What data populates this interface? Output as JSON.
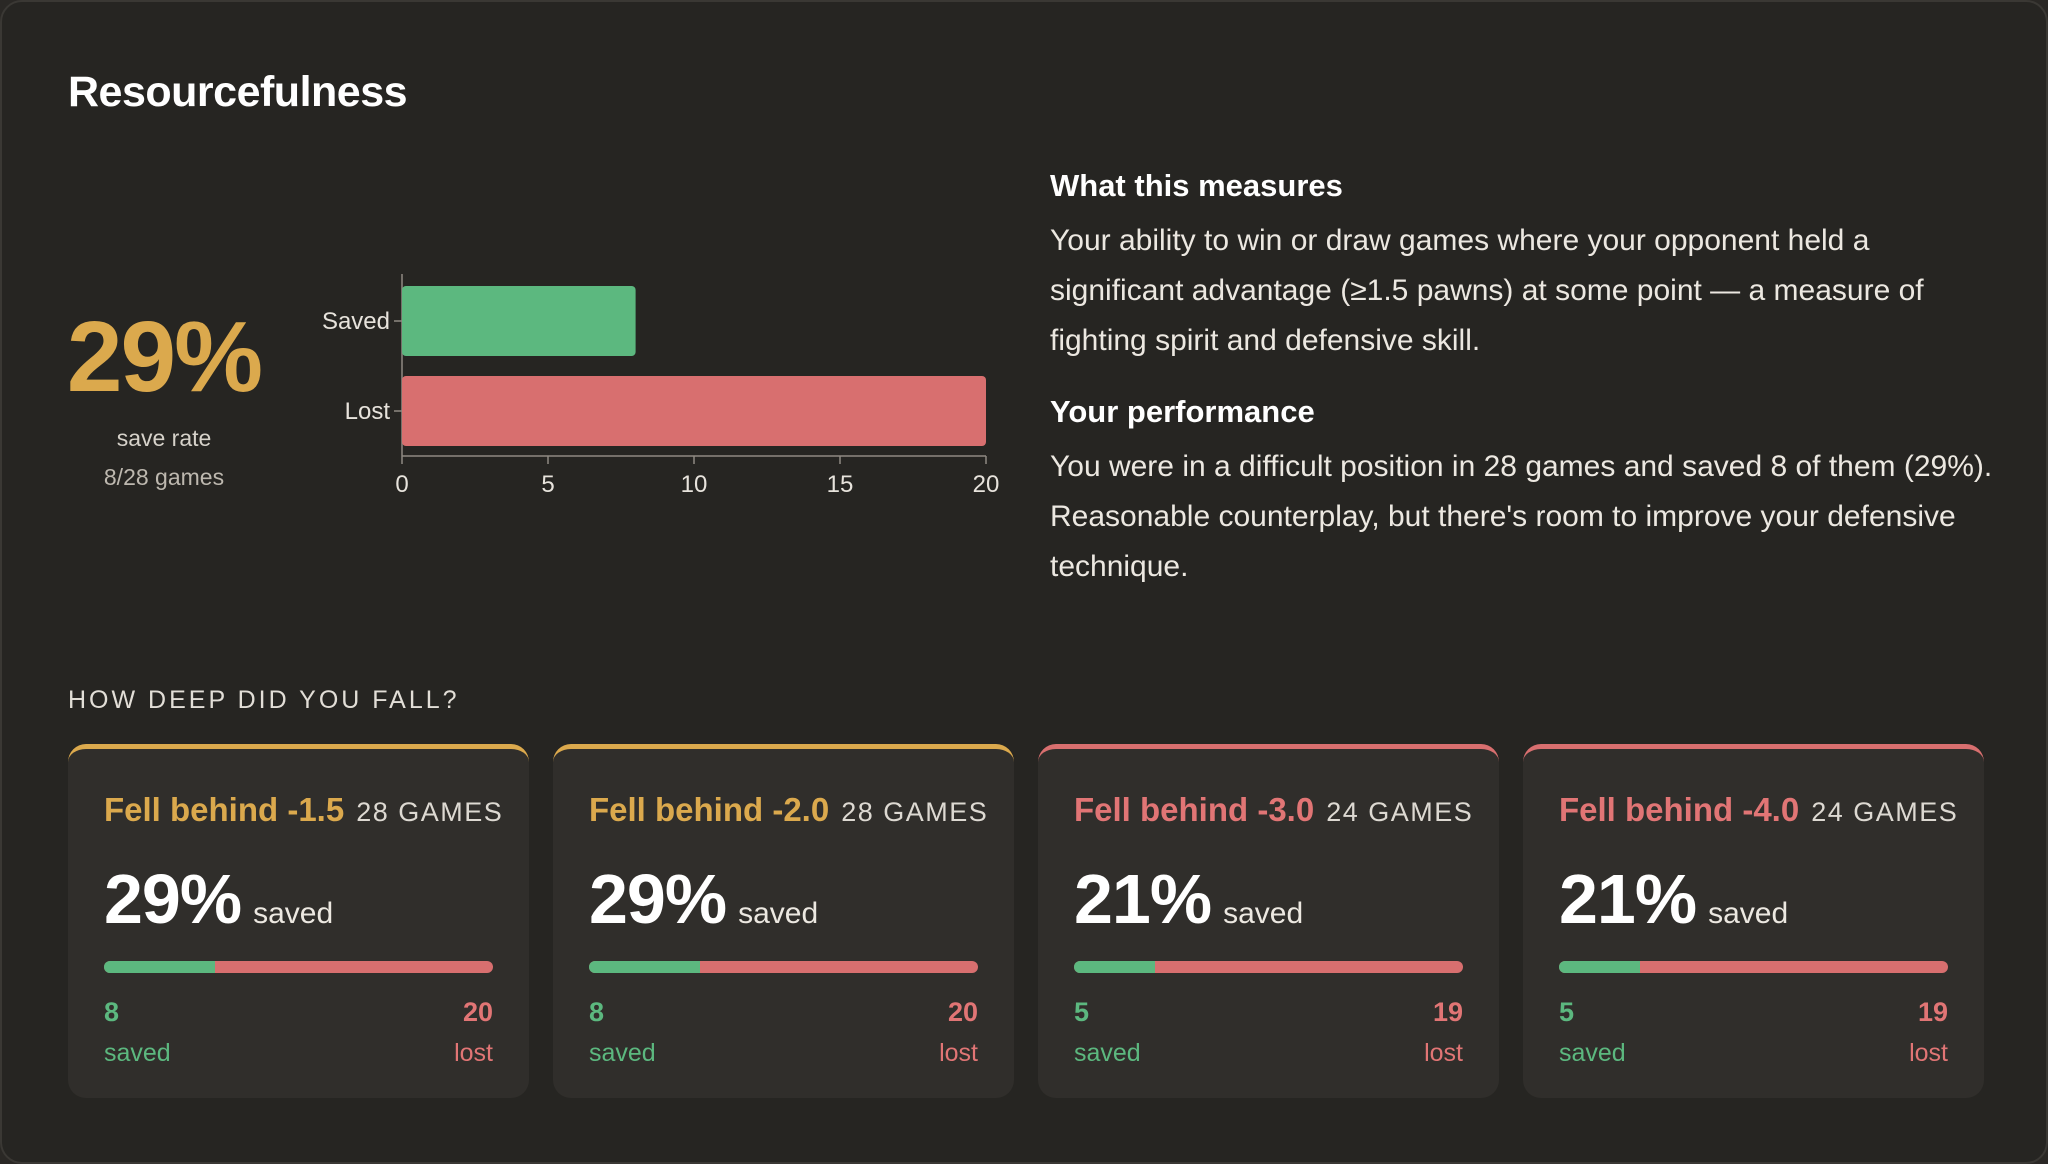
{
  "title": "Resourcefulness",
  "summary": {
    "rate": "29%",
    "rate_label": "save rate",
    "games_label": "8/28 games"
  },
  "chart_data": {
    "type": "bar",
    "orientation": "horizontal",
    "categories": [
      "Saved",
      "Lost"
    ],
    "values": [
      8,
      20
    ],
    "xlim": [
      0,
      20
    ],
    "xticks": [
      0,
      5,
      10,
      15,
      20
    ],
    "colors": [
      "#5cb87f",
      "#d86f6f"
    ],
    "grid": false
  },
  "info": {
    "heading1": "What this measures",
    "text1": "Your ability to win or draw games where your opponent held a significant advantage (≥1.5 pawns) at some point — a measure of fighting spirit and defensive skill.",
    "heading2": "Your performance",
    "text2": "You were in a difficult position in 28 games and saved 8 of them (29%). Reasonable counterplay, but there's room to improve your defensive technique."
  },
  "section_label": "HOW DEEP DID YOU FALL?",
  "cards": [
    {
      "name": "Fell behind -1.5",
      "count": "28 GAMES",
      "rate": "29%",
      "rate_label": "saved",
      "saved": "8",
      "lost": "20",
      "saved_label": "saved",
      "lost_label": "lost",
      "saved_fraction": 0.2857,
      "accent": "gold"
    },
    {
      "name": "Fell behind -2.0",
      "count": "28 GAMES",
      "rate": "29%",
      "rate_label": "saved",
      "saved": "8",
      "lost": "20",
      "saved_label": "saved",
      "lost_label": "lost",
      "saved_fraction": 0.2857,
      "accent": "gold"
    },
    {
      "name": "Fell behind -3.0",
      "count": "24 GAMES",
      "rate": "21%",
      "rate_label": "saved",
      "saved": "5",
      "lost": "19",
      "saved_label": "saved",
      "lost_label": "lost",
      "saved_fraction": 0.2083,
      "accent": "red"
    },
    {
      "name": "Fell behind -4.0",
      "count": "24 GAMES",
      "rate": "21%",
      "rate_label": "saved",
      "saved": "5",
      "lost": "19",
      "saved_label": "saved",
      "lost_label": "lost",
      "saved_fraction": 0.2083,
      "accent": "red"
    }
  ]
}
